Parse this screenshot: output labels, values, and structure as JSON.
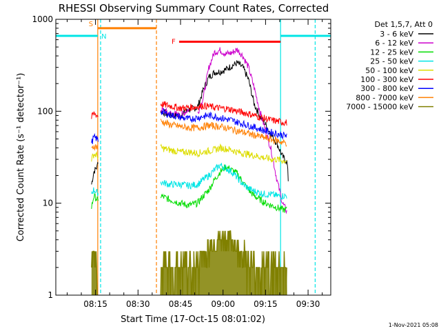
{
  "chart_data": {
    "type": "line",
    "title": "RHESSI Observing Summary Count Rates, Corrected",
    "xlabel": "Start Time (17-Oct-15 08:01:02)",
    "ylabel": "Corrected Count Rate (s⁻¹ detector⁻¹)",
    "yscale": "log",
    "ylim": [
      1,
      1000
    ],
    "xlim_minutes": [
      0,
      97
    ],
    "grid": false,
    "legend_position": "top-right",
    "legend_title": "Det 1,5,7, Att 0",
    "x_ticks": [
      {
        "minute": 14,
        "label": "08:15"
      },
      {
        "minute": 29,
        "label": "08:30"
      },
      {
        "minute": 44,
        "label": "08:45"
      },
      {
        "minute": 59,
        "label": "09:00"
      },
      {
        "minute": 74,
        "label": "09:15"
      },
      {
        "minute": 89,
        "label": "09:30"
      }
    ],
    "y_ticks": [
      {
        "value": 1,
        "label": "1"
      },
      {
        "value": 10,
        "label": "10"
      },
      {
        "value": 100,
        "label": "100"
      },
      {
        "value": 1000,
        "label": "1000"
      }
    ],
    "series": [
      {
        "name": "3 - 6 keV",
        "color": "#000000",
        "x": [
          12.6,
          13.4,
          14.6,
          15.0,
          37.0,
          40,
          44,
          47,
          50,
          52,
          54,
          56,
          58,
          60,
          62,
          64,
          66,
          68,
          70,
          72,
          74,
          76,
          78,
          80,
          81.6,
          82.0
        ],
        "y": [
          16,
          22,
          25,
          30,
          100,
          92,
          90,
          105,
          110,
          170,
          235,
          265,
          270,
          285,
          310,
          335,
          300,
          220,
          120,
          88,
          72,
          55,
          45,
          32,
          28,
          18
        ]
      },
      {
        "name": "6 - 12 keV",
        "color": "#cc00cc",
        "x": [
          37.0,
          40,
          44,
          47,
          50,
          52,
          54,
          56,
          58,
          60,
          62,
          64,
          66,
          68,
          70,
          72,
          74,
          76,
          78,
          80,
          81.6
        ],
        "y": [
          105,
          95,
          90,
          105,
          95,
          140,
          300,
          440,
          460,
          420,
          430,
          470,
          400,
          300,
          180,
          100,
          62,
          38,
          18,
          10,
          8
        ]
      },
      {
        "name": "12 - 25 keV",
        "color": "#00dd00",
        "x": [
          12.6,
          13.4,
          14.6,
          15.0,
          37.0,
          40,
          44,
          47,
          50,
          52,
          54,
          56,
          58,
          60,
          62,
          64,
          66,
          68,
          70,
          72,
          74,
          76,
          78,
          80,
          81.6
        ],
        "y": [
          9,
          12,
          11,
          10,
          12,
          11,
          10,
          9.5,
          10,
          12,
          14,
          18,
          22,
          25,
          23,
          21,
          17,
          14,
          12,
          11,
          10,
          9.5,
          9,
          8.5,
          8.5
        ]
      },
      {
        "name": "25 - 50 keV",
        "color": "#00e5e5",
        "x": [
          12.6,
          13.4,
          14.6,
          15.0,
          37.0,
          40,
          44,
          47,
          50,
          52,
          54,
          56,
          58,
          60,
          62,
          64,
          66,
          68,
          70,
          72,
          74,
          76,
          78,
          80,
          81.6
        ],
        "y": [
          13,
          14,
          13,
          13,
          17,
          16,
          16,
          15.5,
          16,
          18,
          20,
          23,
          26,
          24,
          22,
          19,
          16,
          14.5,
          13.5,
          13,
          12.5,
          12.5,
          12,
          12,
          12
        ]
      },
      {
        "name": "50 - 100 keV",
        "color": "#dddd00",
        "x": [
          12.6,
          13.4,
          14.6,
          15.0,
          37.0,
          40,
          44,
          47,
          50,
          52,
          54,
          56,
          58,
          60,
          62,
          64,
          66,
          68,
          70,
          72,
          74,
          76,
          78,
          80,
          81.6
        ],
        "y": [
          30,
          34,
          33,
          32,
          40,
          38,
          36,
          36,
          35,
          36,
          37,
          38,
          40,
          39,
          38,
          36,
          35,
          34,
          33,
          32,
          31,
          30,
          30,
          29,
          29
        ]
      },
      {
        "name": "100 - 300 keV",
        "color": "#ff0000",
        "x": [
          12.6,
          13.4,
          14.6,
          15.0,
          37.0,
          40,
          44,
          47,
          50,
          52,
          54,
          56,
          58,
          60,
          62,
          64,
          66,
          68,
          70,
          72,
          74,
          76,
          78,
          80,
          81.6
        ],
        "y": [
          85,
          95,
          90,
          88,
          120,
          115,
          108,
          110,
          112,
          115,
          113,
          110,
          108,
          107,
          104,
          100,
          97,
          94,
          90,
          86,
          83,
          80,
          78,
          76,
          75
        ]
      },
      {
        "name": "300 - 800 keV",
        "color": "#0000ff",
        "x": [
          12.6,
          13.4,
          14.6,
          15.0,
          37.0,
          40,
          44,
          47,
          50,
          52,
          54,
          56,
          58,
          60,
          62,
          64,
          66,
          68,
          70,
          72,
          74,
          76,
          78,
          80,
          81.6
        ],
        "y": [
          45,
          52,
          50,
          48,
          100,
          92,
          86,
          82,
          85,
          88,
          90,
          88,
          85,
          82,
          80,
          76,
          73,
          70,
          67,
          64,
          61,
          59,
          57,
          55,
          54
        ]
      },
      {
        "name": "800 - 7000 keV",
        "color": "#ff7f00",
        "x": [
          12.6,
          13.4,
          14.6,
          15.0,
          37.0,
          40,
          44,
          47,
          50,
          52,
          54,
          56,
          58,
          60,
          62,
          64,
          66,
          68,
          70,
          72,
          74,
          76,
          78,
          80,
          81.6
        ],
        "y": [
          38,
          42,
          41,
          40,
          78,
          72,
          68,
          66,
          66,
          68,
          70,
          69,
          68,
          66,
          64,
          61,
          59,
          57,
          55,
          53,
          51,
          49,
          48,
          46,
          45
        ]
      },
      {
        "name": "7000 - 15000 keV",
        "color": "#808000",
        "x": [
          12.6,
          13.4,
          14.6,
          15.0,
          37.0,
          40,
          44,
          47,
          50,
          52,
          54,
          56,
          58,
          60,
          62,
          64,
          66,
          68,
          70,
          72,
          74,
          76,
          78,
          80,
          81.6
        ],
        "y": [
          2,
          3,
          2,
          2,
          2,
          2,
          2,
          2,
          2,
          3,
          3,
          4,
          4,
          4,
          4,
          3,
          3,
          2,
          2,
          2,
          2,
          2,
          2,
          2,
          2
        ]
      }
    ],
    "annotations": [
      {
        "label": "S",
        "color": "#ff7f00",
        "x_start": 14.8,
        "x_end": 35.5,
        "y": 800
      },
      {
        "label": "N",
        "color": "#00e5e5",
        "x_start": 0,
        "x_end": 14.8,
        "y": 660
      },
      {
        "label": "F",
        "color": "#ff0000",
        "x_start": 43.5,
        "x_end": 79.3,
        "y": 570
      }
    ],
    "vertical_markers": [
      {
        "minute": 14.8,
        "color": "#ff7f00",
        "style": "solid"
      },
      {
        "minute": 15.8,
        "color": "#00e5e5",
        "style": "dashed"
      },
      {
        "minute": 35.5,
        "color": "#ff7f00",
        "style": "dashed"
      },
      {
        "minute": 79.3,
        "color": "#00e5e5",
        "style": "solid"
      },
      {
        "minute": 91.5,
        "color": "#00e5e5",
        "style": "dashed"
      }
    ],
    "cyan_bar_right": {
      "x_start": 79.3,
      "x_end": 97,
      "y": 660
    },
    "footer_date": "1-Nov-2021 05:08"
  }
}
